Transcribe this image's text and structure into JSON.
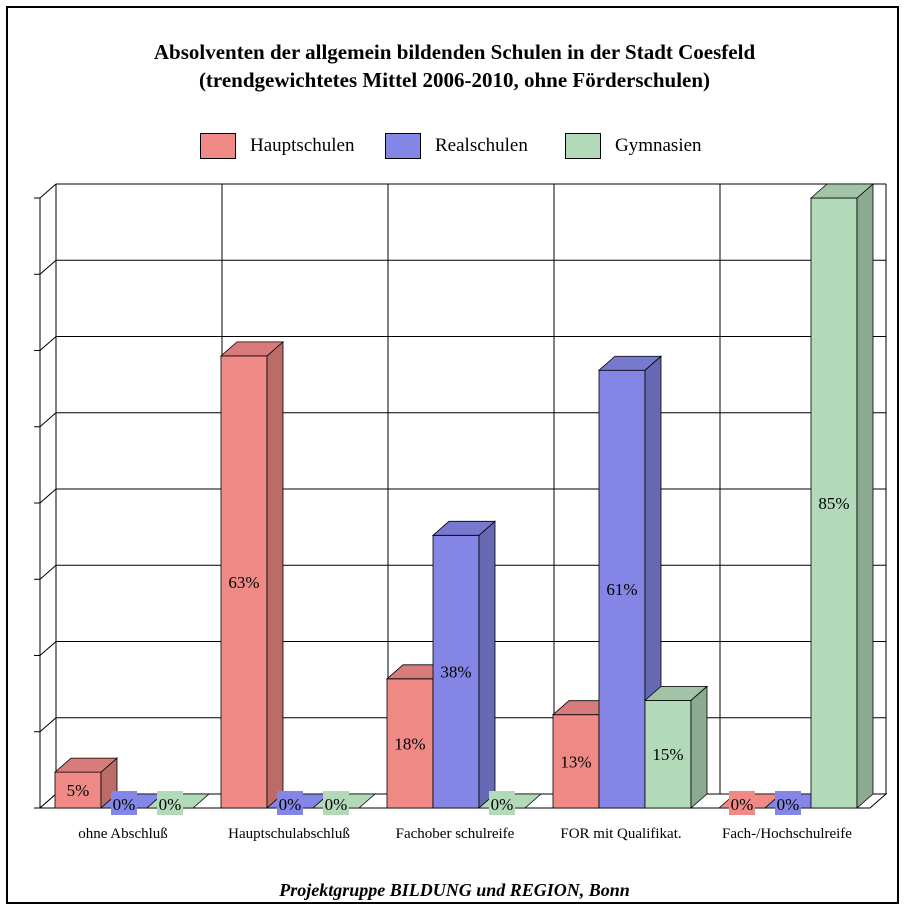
{
  "chart_data": {
    "type": "bar",
    "title": "Absolventen der allgemein bildenden Schulen in der Stadt Coesfeld",
    "subtitle": "(trendgewichtetes Mittel 2006-2010, ohne Förderschulen)",
    "categories": [
      "ohne Abschluß",
      "Hauptschulabschluß",
      "Fachober schulreife",
      "FOR mit Qualifikat.",
      "Fach-/Hochschulreife"
    ],
    "series": [
      {
        "name": "Hauptschulen",
        "color": "#ef8a87",
        "values": [
          5,
          63,
          18,
          13,
          0
        ],
        "labels": [
          "5%",
          "63%",
          "18%",
          "13%",
          "0%"
        ]
      },
      {
        "name": "Realschulen",
        "color": "#8486e6",
        "values": [
          0,
          0,
          38,
          61,
          0
        ],
        "labels": [
          "0%",
          "0%",
          "38%",
          "61%",
          "0%"
        ]
      },
      {
        "name": "Gymnasien",
        "color": "#b3dab8",
        "values": [
          0,
          0,
          0,
          15,
          85
        ],
        "labels": [
          "0%",
          "0%",
          "0%",
          "15%",
          "85%"
        ]
      }
    ],
    "ylim": [
      0,
      85
    ],
    "grid": true,
    "legend": "top-center"
  },
  "footer": "Projektgruppe BILDUNG und REGION, Bonn"
}
